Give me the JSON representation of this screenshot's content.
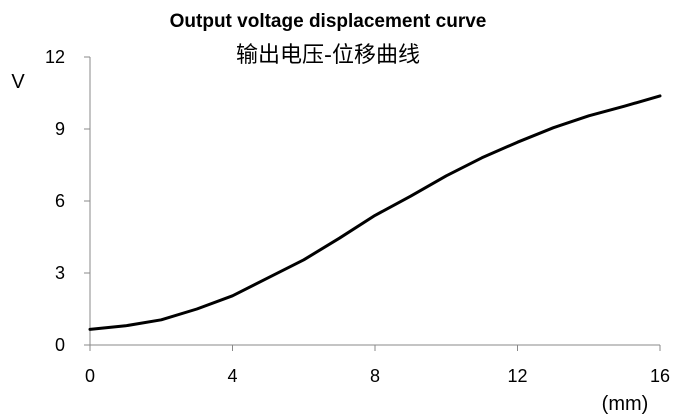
{
  "chart_data": {
    "type": "line",
    "title": "Output voltage displacement curve",
    "subtitle": "输出电压-位移曲线",
    "xlabel": "(mm)",
    "ylabel": "V",
    "xlim": [
      0,
      16
    ],
    "ylim": [
      0,
      12
    ],
    "x_ticks": [
      "0",
      "4",
      "8",
      "12",
      "16"
    ],
    "y_ticks": [
      "0",
      "3",
      "6",
      "9",
      "12"
    ],
    "grid": false,
    "series": [
      {
        "color": "#000000",
        "x": [
          0,
          1,
          2,
          3,
          4,
          5,
          6,
          7,
          8,
          9,
          10,
          11,
          12,
          13,
          14,
          15,
          16
        ],
        "y": [
          0.65,
          0.8,
          1.05,
          1.5,
          2.05,
          2.8,
          3.55,
          4.45,
          5.4,
          6.2,
          7.05,
          7.8,
          8.45,
          9.05,
          9.55,
          9.95,
          10.38
        ]
      }
    ]
  }
}
